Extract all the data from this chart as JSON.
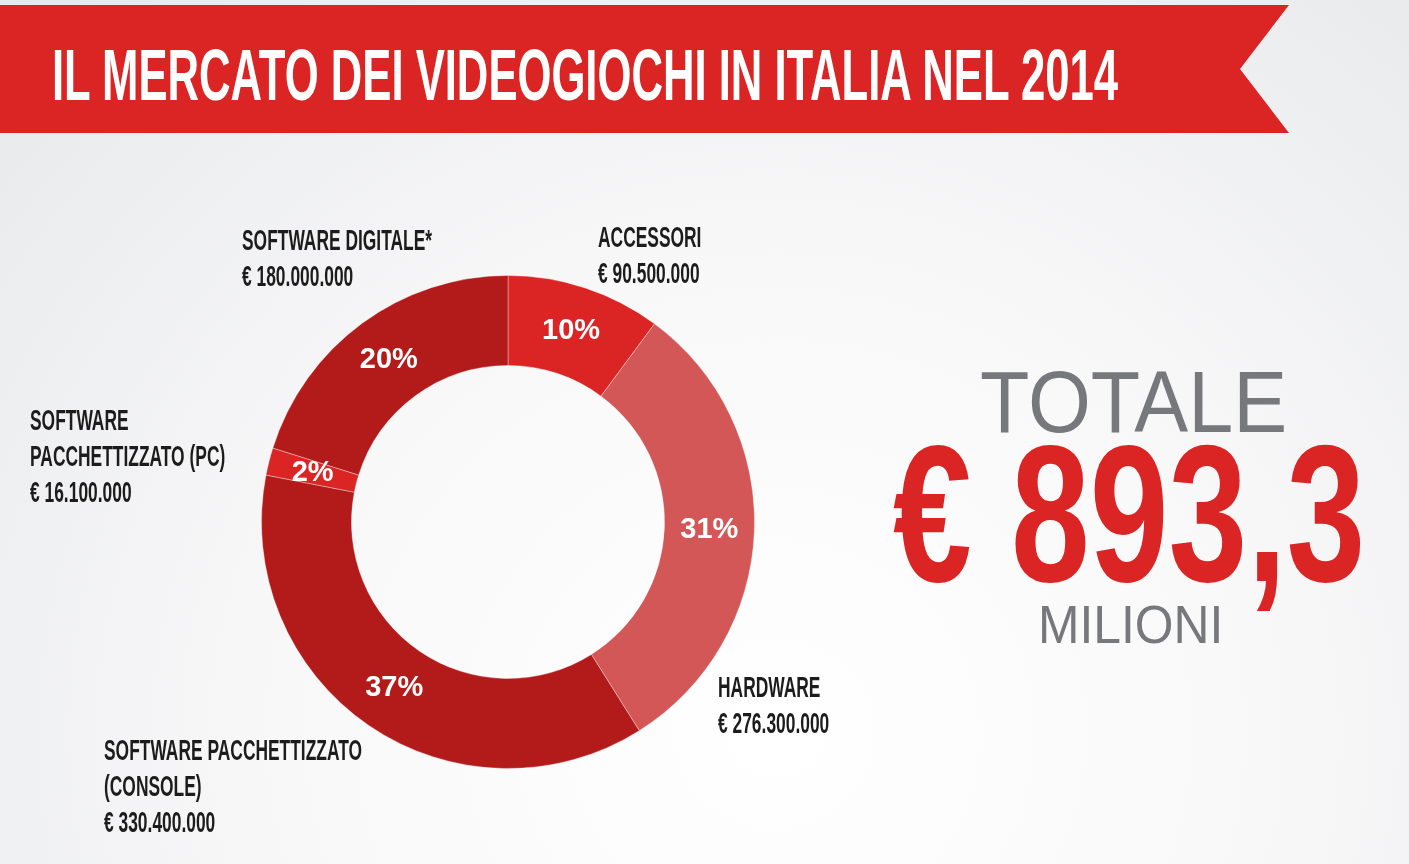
{
  "chart_data": {
    "type": "donut",
    "title": "IL MERCATO DEI VIDEOGIOCHI IN ITALIA NEL 2014",
    "categories": [
      "ACCESSORI",
      "HARDWARE",
      "SOFTWARE PACCHETTIZZATO (CONSOLE)",
      "SOFTWARE PACCHETTIZZATO (PC)",
      "SOFTWARE DIGITALE*"
    ],
    "values": [
      90500000,
      276300000,
      330400000,
      16100000,
      180000000
    ],
    "colors": [
      "#da2524",
      "#d35757",
      "#b31a1a",
      "#da2524",
      "#b31a1a"
    ],
    "value_labels": [
      "€ 90.500.000",
      "€ 276.300.000",
      "€ 330.400.000",
      "€ 16.100.000",
      "€ 180.000.000"
    ],
    "annotations": [
      {
        "text": "10%",
        "x": "ACCESSORI"
      },
      {
        "text": "31%",
        "x": "HARDWARE"
      },
      {
        "text": "37%",
        "x": "SOFTWARE PACCHETTIZZATO (CONSOLE)"
      },
      {
        "text": "2%",
        "x": "SOFTWARE PACCHETTIZZATO (PC)"
      },
      {
        "text": "20%",
        "x": "SOFTWARE DIGITALE*"
      },
      "TOTALE",
      "€ 893,3",
      "MILIONI"
    ]
  }
}
